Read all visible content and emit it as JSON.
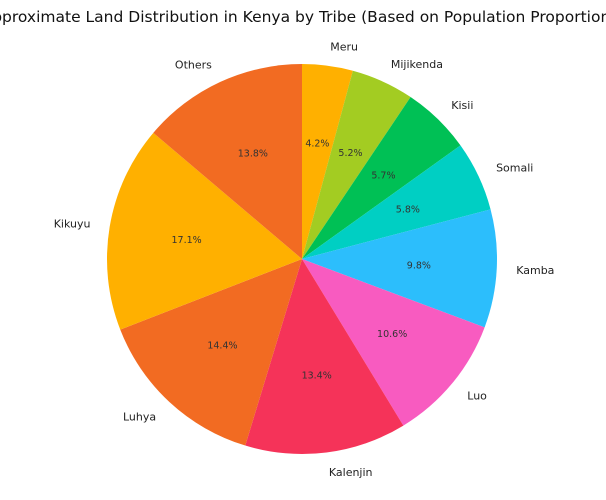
{
  "chart_data": {
    "type": "pie",
    "title": "Approximate Land Distribution in Kenya by Tribe (Based on Population Proportions)",
    "start_angle_deg": 90,
    "direction": "clockwise",
    "slices": [
      {
        "label": "Meru",
        "value": 4.2,
        "pct_label": "4.2%",
        "color": "#FFB000"
      },
      {
        "label": "Mijikenda",
        "value": 5.2,
        "pct_label": "5.2%",
        "color": "#A3CC22"
      },
      {
        "label": "Kisii",
        "value": 5.7,
        "pct_label": "5.7%",
        "color": "#00C055"
      },
      {
        "label": "Somali",
        "value": 5.8,
        "pct_label": "5.8%",
        "color": "#00CFC3"
      },
      {
        "label": "Kamba",
        "value": 9.8,
        "pct_label": "9.8%",
        "color": "#2CBEFC"
      },
      {
        "label": "Luo",
        "value": 10.6,
        "pct_label": "10.6%",
        "color": "#F85BC0"
      },
      {
        "label": "Kalenjin",
        "value": 13.4,
        "pct_label": "13.4%",
        "color": "#F53359"
      },
      {
        "label": "Luhya",
        "value": 14.4,
        "pct_label": "14.4%",
        "color": "#F26B22"
      },
      {
        "label": "Kikuyu",
        "value": 17.1,
        "pct_label": "17.1%",
        "color": "#FFB000"
      },
      {
        "label": "Others",
        "value": 13.8,
        "pct_label": "13.8%",
        "color": "#F26B22"
      }
    ]
  }
}
